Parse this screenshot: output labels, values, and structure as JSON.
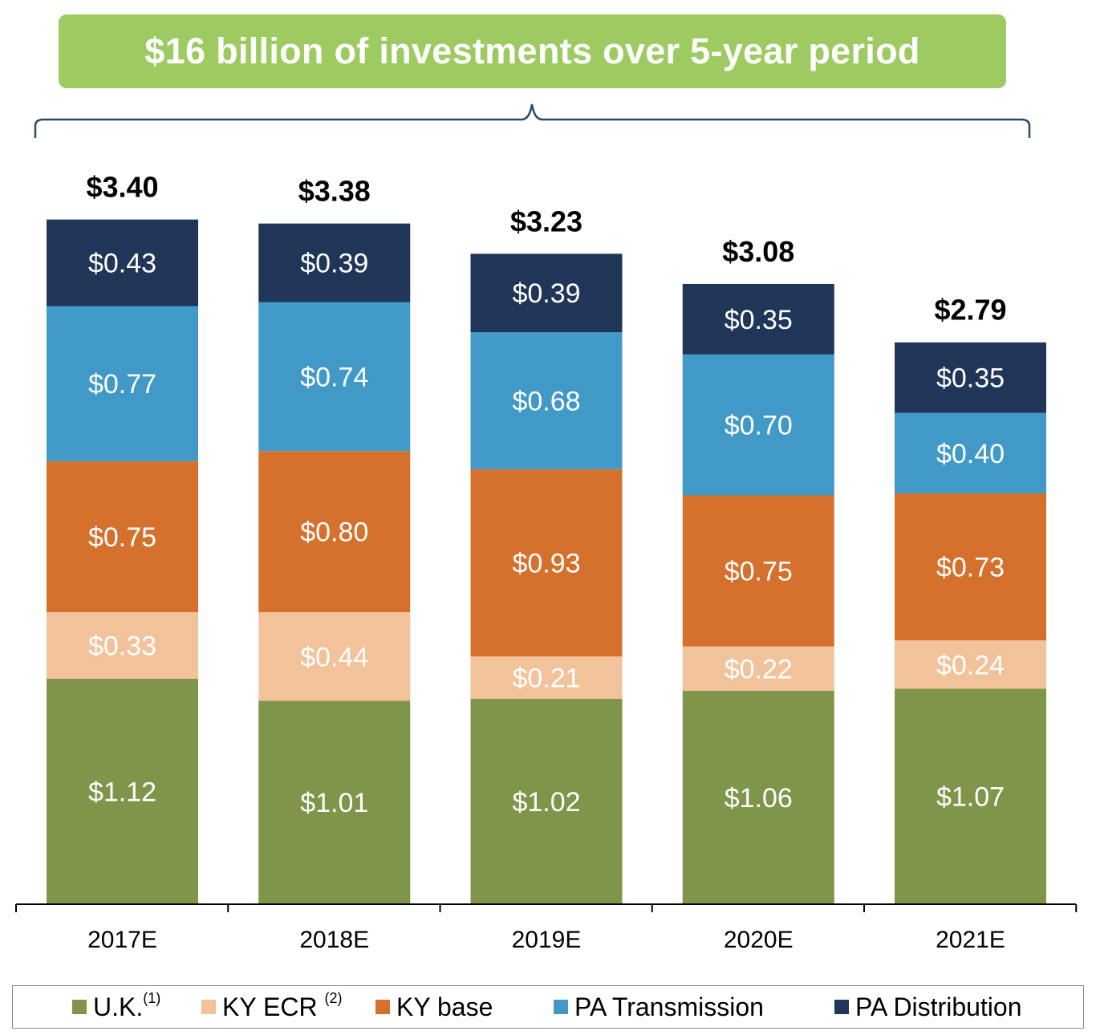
{
  "banner": {
    "title": "$16 billion of investments over 5-year period"
  },
  "chart_data": {
    "type": "bar",
    "stacked": true,
    "categories": [
      "2017E",
      "2018E",
      "2019E",
      "2020E",
      "2021E"
    ],
    "series": [
      {
        "name": "U.K.",
        "note": "(1)",
        "color": "#7F954A",
        "values": [
          1.12,
          1.01,
          1.02,
          1.06,
          1.07
        ],
        "labels": [
          "$1.12",
          "$1.01",
          "$1.02",
          "$1.06",
          "$1.07"
        ]
      },
      {
        "name": "KY ECR",
        "note": "(2)",
        "color": "#F2C29A",
        "values": [
          0.33,
          0.44,
          0.21,
          0.22,
          0.24
        ],
        "labels": [
          "$0.33",
          "$0.44",
          "$0.21",
          "$0.22",
          "$0.24"
        ]
      },
      {
        "name": "KY base",
        "note": "",
        "color": "#D5702D",
        "values": [
          0.75,
          0.8,
          0.93,
          0.75,
          0.73
        ],
        "labels": [
          "$0.75",
          "$0.80",
          "$0.93",
          "$0.75",
          "$0.73"
        ]
      },
      {
        "name": "PA Transmission",
        "note": "",
        "color": "#4199C8",
        "values": [
          0.77,
          0.74,
          0.68,
          0.7,
          0.4
        ],
        "labels": [
          "$0.77",
          "$0.74",
          "$0.68",
          "$0.70",
          "$0.40"
        ]
      },
      {
        "name": "PA Distribution",
        "note": "",
        "color": "#1F3658",
        "values": [
          0.43,
          0.39,
          0.39,
          0.35,
          0.35
        ],
        "labels": [
          "$0.43",
          "$0.39",
          "$0.39",
          "$0.35",
          "$0.35"
        ]
      }
    ],
    "totals": [
      3.4,
      3.38,
      3.23,
      3.08,
      2.79
    ],
    "total_labels": [
      "$3.40",
      "$3.38",
      "$3.23",
      "$3.08",
      "$2.79"
    ],
    "ylim": [
      0,
      3.4
    ],
    "grid": false,
    "legend_position": "bottom"
  }
}
